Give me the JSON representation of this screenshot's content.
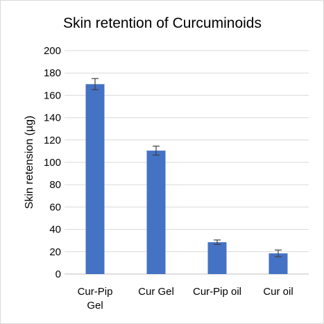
{
  "chart_data": {
    "type": "bar",
    "title": "Skin retention of Curcuminoids",
    "xlabel": "",
    "ylabel": "Skin retension (µg)",
    "ylim": [
      0,
      200
    ],
    "yticks": [
      0,
      20,
      40,
      60,
      80,
      100,
      120,
      140,
      160,
      180,
      200
    ],
    "categories": [
      [
        "Cur-Pip",
        "Gel"
      ],
      [
        "Cur Gel"
      ],
      [
        "Cur-Pip oil"
      ],
      [
        "Cur oil"
      ]
    ],
    "values": [
      170,
      110.5,
      28.5,
      18.5
    ],
    "error": [
      5,
      4,
      2,
      3
    ],
    "grid": true,
    "legend": "none",
    "colors": {
      "bar": "#4472C4",
      "grid": "#d9d9d9",
      "axis": "#bfbfbf",
      "errorbar": "#404040"
    }
  }
}
